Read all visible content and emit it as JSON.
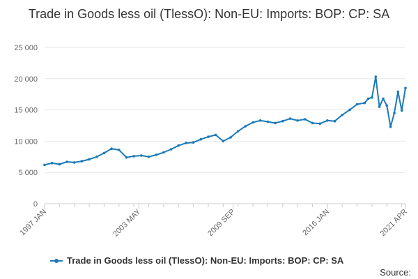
{
  "chart_data": {
    "type": "line",
    "title": "Trade in Goods less oil (TlessO): Non-EU: Imports: BOP: CP: SA",
    "xlabel": "",
    "ylabel": "",
    "ylim": [
      0,
      25000
    ],
    "yticks": [
      0,
      5000,
      10000,
      15000,
      20000,
      25000
    ],
    "ytick_labels": [
      "0",
      "5 000",
      "10 000",
      "15 000",
      "20 000",
      "25 000"
    ],
    "x_start": "1997 JAN",
    "x_end": "2021 APR",
    "xtick_labels": [
      "1997 JAN",
      "2003 MAY",
      "2009 SEP",
      "2016 JAN",
      "2021 APR"
    ],
    "grid": "horizontal",
    "legend_position": "bottom",
    "series": [
      {
        "name": "Trade in Goods less oil (TlessO): Non-EU: Imports: BOP: CP: SA",
        "color": "#1a7ab8",
        "x": [
          "1997-01",
          "1997-07",
          "1998-01",
          "1998-07",
          "1999-01",
          "1999-07",
          "2000-01",
          "2000-07",
          "2001-01",
          "2001-07",
          "2002-01",
          "2002-07",
          "2003-01",
          "2003-07",
          "2004-01",
          "2004-07",
          "2005-01",
          "2005-07",
          "2006-01",
          "2006-07",
          "2007-01",
          "2007-07",
          "2008-01",
          "2008-07",
          "2009-01",
          "2009-07",
          "2010-01",
          "2010-07",
          "2011-01",
          "2011-07",
          "2012-01",
          "2012-07",
          "2013-01",
          "2013-07",
          "2014-01",
          "2014-07",
          "2015-01",
          "2015-07",
          "2016-01",
          "2016-07",
          "2017-01",
          "2017-07",
          "2018-01",
          "2018-07",
          "2018-10",
          "2019-01",
          "2019-04",
          "2019-07",
          "2019-10",
          "2020-01",
          "2020-04",
          "2020-07",
          "2020-10",
          "2021-01",
          "2021-04"
        ],
        "values": [
          6200,
          6500,
          6300,
          6700,
          6600,
          6800,
          7100,
          7500,
          8100,
          8800,
          8600,
          7400,
          7600,
          7700,
          7500,
          7800,
          8200,
          8700,
          9300,
          9700,
          9800,
          10300,
          10700,
          11000,
          10000,
          10600,
          11600,
          12400,
          13000,
          13300,
          13100,
          12900,
          13200,
          13600,
          13300,
          13500,
          12900,
          12800,
          13300,
          13200,
          14200,
          15000,
          15900,
          16100,
          16800,
          17000,
          20300,
          15500,
          16800,
          15700,
          12300,
          14500,
          17900,
          14900,
          18500
        ]
      }
    ]
  },
  "legend": {
    "label": "Trade in Goods less oil (TlessO): Non-EU: Imports: BOP: CP: SA"
  },
  "footer": {
    "source_label": "Source:"
  }
}
